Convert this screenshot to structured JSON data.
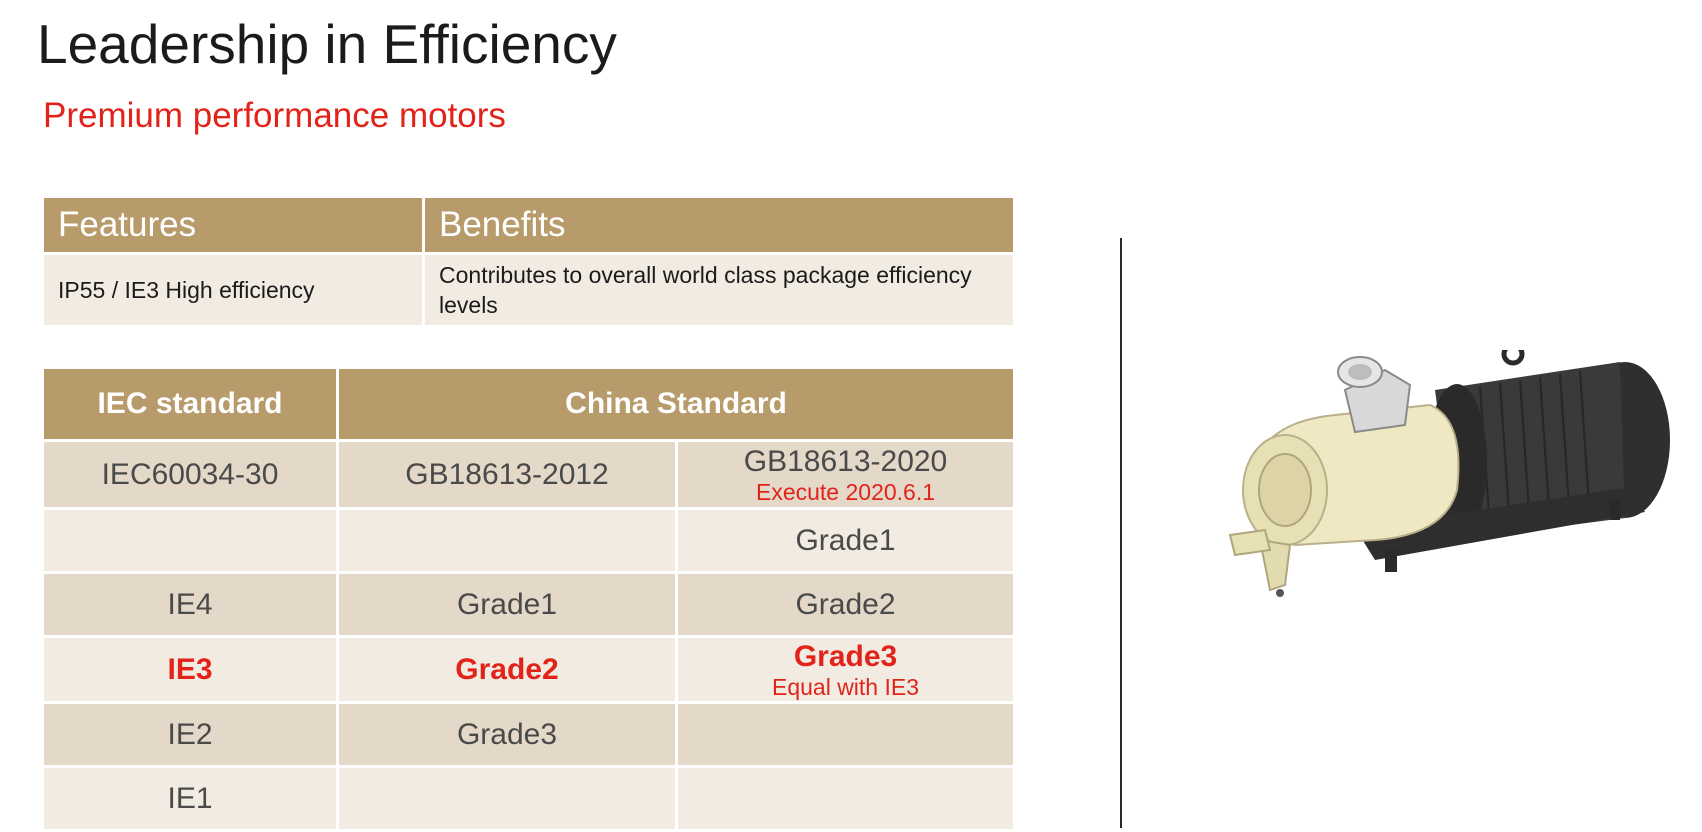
{
  "slide": {
    "title": "Leadership in Efficiency",
    "subtitle": "Premium performance motors"
  },
  "features_table": {
    "headers": [
      "Features",
      "Benefits"
    ],
    "rows": [
      {
        "feature": "IP55 / IE3 High efficiency",
        "benefit": "Contributes to overall world class package efficiency levels"
      }
    ]
  },
  "standards_table": {
    "headers": {
      "iec": "IEC standard",
      "china": "China Standard"
    },
    "subheader": {
      "iec": "IEC60034-30",
      "gb2012": "GB18613-2012",
      "gb2020": "GB18613-2020",
      "gb2020_note": "Execute 2020.6.1"
    },
    "rows": [
      {
        "iec": "",
        "gb2012": "",
        "gb2020": "Grade1"
      },
      {
        "iec": "IE4",
        "gb2012": "Grade1",
        "gb2020": "Grade2"
      },
      {
        "iec": "IE3",
        "gb2012": "Grade2",
        "gb2020": "Grade3",
        "gb2020_note": "Equal with IE3"
      },
      {
        "iec": "IE2",
        "gb2012": "Grade3",
        "gb2020": ""
      },
      {
        "iec": "IE1",
        "gb2012": "",
        "gb2020": ""
      }
    ]
  },
  "colors": {
    "header_bg": "#b89b6b",
    "row_dark": "#e4d8c8",
    "row_light": "#f2ebe2",
    "accent_red": "#e2231a"
  },
  "image": {
    "subject": "air-compressor-motor-icon"
  }
}
